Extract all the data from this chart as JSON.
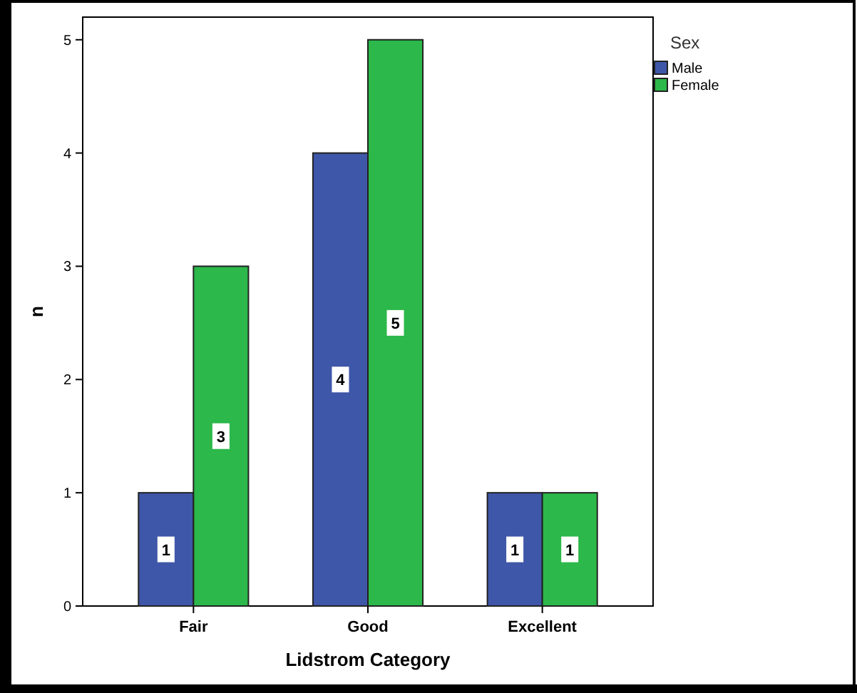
{
  "chart_data": {
    "type": "bar",
    "xlabel": "Lidstrom Category",
    "ylabel": "n",
    "legend_title": "Sex",
    "categories": [
      "Fair",
      "Good",
      "Excellent"
    ],
    "series": [
      {
        "name": "Male",
        "color": "#3f57a8",
        "values": [
          1,
          4,
          1
        ]
      },
      {
        "name": "Female",
        "color": "#2cb84a",
        "values": [
          3,
          5,
          1
        ]
      }
    ],
    "ylim": [
      0,
      5.2
    ],
    "yticks": [
      0,
      1,
      2,
      3,
      4,
      5
    ],
    "grid": false,
    "legend": "top right",
    "data_labels": true
  }
}
